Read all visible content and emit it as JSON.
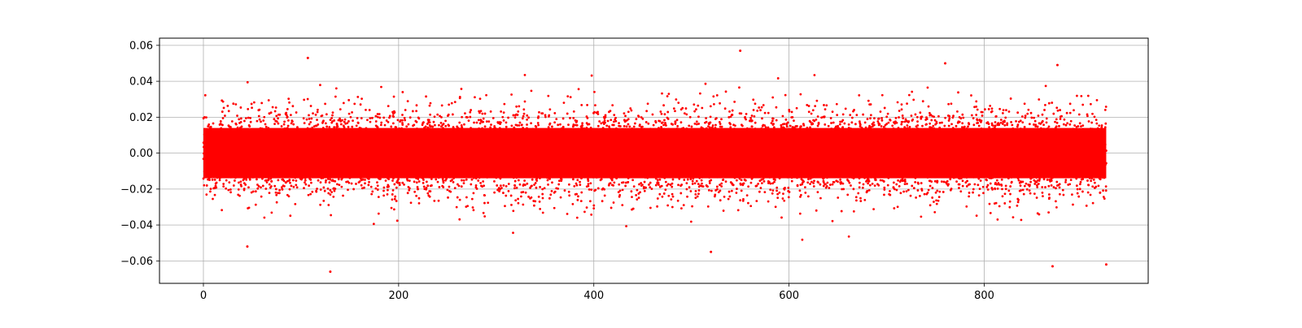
{
  "chart_data": {
    "type": "scatter",
    "title": "",
    "xlabel": "",
    "ylabel": "",
    "xlim": [
      -45,
      968
    ],
    "ylim": [
      -0.0725,
      0.064
    ],
    "x_ticks": [
      0,
      200,
      400,
      600,
      800
    ],
    "y_ticks": [
      -0.06,
      -0.04,
      -0.02,
      0.0,
      0.02,
      0.04,
      0.06
    ],
    "x_tick_labels": [
      "0",
      "200",
      "400",
      "600",
      "800"
    ],
    "y_tick_labels": [
      "−0.06",
      "−0.04",
      "−0.02",
      "0.00",
      "0.02",
      "0.04",
      "0.06"
    ],
    "grid": true,
    "legend": "none",
    "marker_color": "#ff0000",
    "series": [
      {
        "x_range": [
          0,
          925
        ],
        "y_center": 0.0,
        "y_spread": "approx ±0.02 dense band, outliers to ±0.06",
        "notable_points": [
          {
            "x": 130,
            "y": -0.066
          },
          {
            "x": 550,
            "y": 0.057
          },
          {
            "x": 107,
            "y": 0.053
          },
          {
            "x": 760,
            "y": 0.05
          },
          {
            "x": 875,
            "y": 0.049
          },
          {
            "x": 870,
            "y": -0.063
          },
          {
            "x": 925,
            "y": -0.062
          },
          {
            "x": 520,
            "y": -0.055
          },
          {
            "x": 45,
            "y": -0.052
          }
        ]
      }
    ]
  }
}
